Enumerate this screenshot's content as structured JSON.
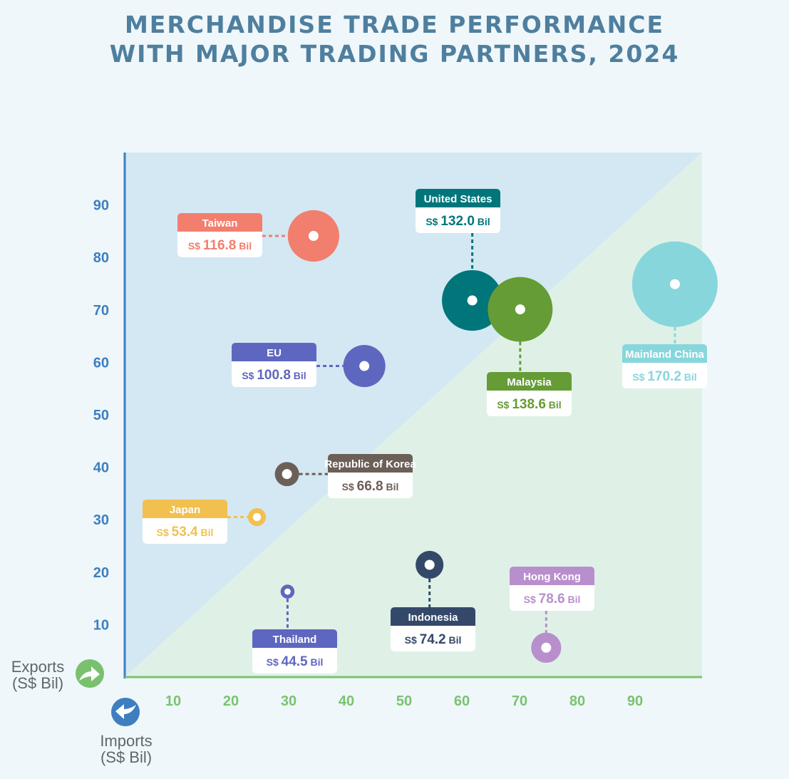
{
  "title": {
    "line1": "MERCHANDISE TRADE PERFORMANCE",
    "line2": "WITH MAJOR TRADING PARTNERS, 2024"
  },
  "axes": {
    "y_label_line1": "Exports",
    "y_label_line2": "(S$ Bil)",
    "x_label_line1": "Imports",
    "x_label_line2": "(S$ Bil)",
    "y_icon": "export-arrow-icon",
    "x_icon": "import-arrow-icon"
  },
  "colors": {
    "background": "#eff7fa",
    "export_surplus_region": "#d3e8f3",
    "import_surplus_region": "#dff1e6",
    "y_axis": "#3d7fbf",
    "x_axis": "#78c46e"
  },
  "chart_data": {
    "type": "scatter",
    "title": "MERCHANDISE TRADE PERFORMANCE WITH MAJOR TRADING PARTNERS, 2024",
    "xlabel": "Imports (S$ Bil)",
    "ylabel": "Exports (S$ Bil)",
    "xlim": [
      0,
      100
    ],
    "ylim": [
      0,
      100
    ],
    "x_ticks": [
      10,
      20,
      30,
      40,
      50,
      60,
      70,
      80,
      90
    ],
    "y_ticks": [
      10,
      20,
      30,
      40,
      50,
      60,
      70,
      80,
      90
    ],
    "grid": false,
    "reference_line": "y = x",
    "value_prefix": "S$",
    "value_suffix": "Bil",
    "points": [
      {
        "name": "Taiwan",
        "x": 32.7,
        "y": 84.1,
        "total": "116.8",
        "total_value": 116.8,
        "color": "#f27e6e"
      },
      {
        "name": "United States",
        "x": 60.2,
        "y": 71.8,
        "total": "132.0",
        "total_value": 132.0,
        "color": "#00767b"
      },
      {
        "name": "Malaysia",
        "x": 68.5,
        "y": 70.1,
        "total": "138.6",
        "total_value": 138.6,
        "color": "#659c35"
      },
      {
        "name": "Mainland China",
        "x": 95.3,
        "y": 74.9,
        "total": "170.2",
        "total_value": 170.2,
        "color": "#87d6dc"
      },
      {
        "name": "EU",
        "x": 41.5,
        "y": 59.3,
        "total": "100.8",
        "total_value": 100.8,
        "color": "#5e67bf"
      },
      {
        "name": "Republic of Korea",
        "x": 28.1,
        "y": 38.7,
        "total": "66.8",
        "total_value": 66.8,
        "color": "#6c5f57"
      },
      {
        "name": "Japan",
        "x": 22.9,
        "y": 30.5,
        "total": "53.4",
        "total_value": 53.4,
        "color": "#f1c04f"
      },
      {
        "name": "Thailand",
        "x": 28.2,
        "y": 16.3,
        "total": "44.5",
        "total_value": 44.5,
        "color": "#5e67bf"
      },
      {
        "name": "Indonesia",
        "x": 52.8,
        "y": 21.4,
        "total": "74.2",
        "total_value": 74.2,
        "color": "#34496a"
      },
      {
        "name": "Hong Kong",
        "x": 73.0,
        "y": 5.6,
        "total": "78.6",
        "total_value": 78.6,
        "color": "#b88fcc"
      }
    ]
  }
}
